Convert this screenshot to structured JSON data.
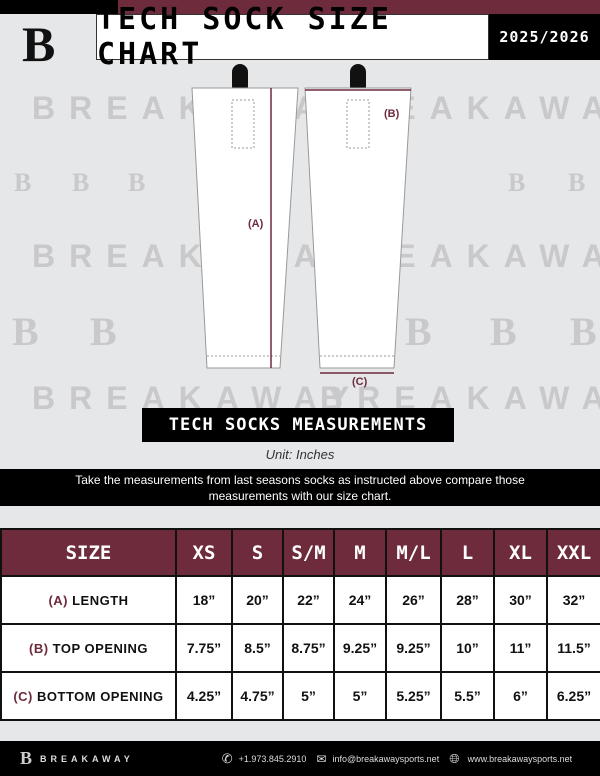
{
  "header": {
    "title": "TECH SOCK SIZE CHART",
    "season": "2025/2026",
    "logo": "B"
  },
  "watermark": {
    "text": "BREAKAWAY",
    "logo": "B"
  },
  "diagram": {
    "label_a": "(A)",
    "label_b": "(B)",
    "label_c": "(C)"
  },
  "banner": "TECH SOCKS MEASUREMENTS",
  "unit": "Unit: Inches",
  "instructions": "Take the measurements from last seasons socks as instructed above compare those measurements  with our size chart.",
  "table": {
    "size_header": "SIZE",
    "sizes": [
      "XS",
      "S",
      "S/M",
      "M",
      "M/L",
      "L",
      "XL",
      "XXL"
    ],
    "rows": [
      {
        "key": "(A)",
        "label": "LENGTH",
        "values": [
          "18”",
          "20”",
          "22”",
          "24”",
          "26”",
          "28”",
          "30”",
          "32”"
        ]
      },
      {
        "key": "(B)",
        "label": "TOP OPENING",
        "values": [
          "7.75”",
          "8.5”",
          "8.75”",
          "9.25”",
          "9.25”",
          "10”",
          "11”",
          "11.5”"
        ]
      },
      {
        "key": "(C)",
        "label": "BOTTOM OPENING",
        "values": [
          "4.25”",
          "4.75”",
          "5”",
          "5”",
          "5.25”",
          "5.5”",
          "6”",
          "6.25”"
        ]
      }
    ]
  },
  "footer": {
    "brand": "BREAKAWAY",
    "phone": "+1.973.845.2910",
    "email": "info@breakawaysports.net",
    "website": "www.breakawaysports.net",
    "icons": [
      "phone-icon",
      "mail-icon",
      "globe-icon"
    ]
  },
  "colors": {
    "maroon": "#6e2b3c",
    "black": "#000000",
    "background": "#e6e7e9"
  }
}
